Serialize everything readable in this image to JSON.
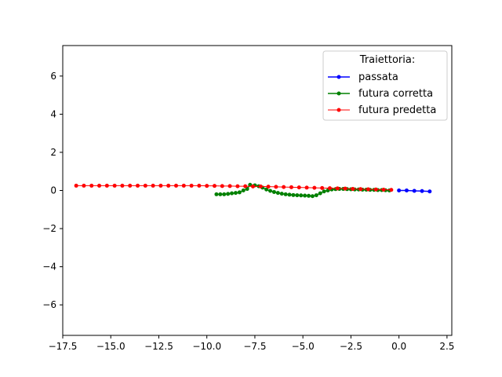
{
  "chart_data": {
    "type": "line",
    "xlim": [
      -17.5,
      2.75
    ],
    "ylim": [
      -7.6,
      7.6
    ],
    "xticks": [
      -17.5,
      -15.0,
      -12.5,
      -10.0,
      -7.5,
      -5.0,
      -2.5,
      0.0,
      2.5
    ],
    "xtick_labels": [
      "−17.5",
      "−15.0",
      "−12.5",
      "−10.0",
      "−7.5",
      "−5.0",
      "−2.5",
      "0.0",
      "2.5"
    ],
    "yticks": [
      -6,
      -4,
      -2,
      0,
      2,
      4,
      6
    ],
    "ytick_labels": [
      "−6",
      "−4",
      "−2",
      "0",
      "2",
      "4",
      "6"
    ],
    "grid": false,
    "legend": {
      "title": "Traiettoria:",
      "position": "top-right"
    },
    "series": [
      {
        "name": "passata",
        "color": "#0000ff",
        "x": [
          0.0,
          0.4,
          0.8,
          1.2,
          1.6
        ],
        "y": [
          0.0,
          0.0,
          -0.02,
          -0.03,
          -0.05
        ]
      },
      {
        "name": "futura corretta",
        "color": "#008000",
        "x": [
          -9.5,
          -9.3,
          -9.1,
          -8.9,
          -8.7,
          -8.5,
          -8.3,
          -8.1,
          -7.9,
          -7.75,
          -7.5,
          -7.3,
          -7.1,
          -6.9,
          -6.7,
          -6.5,
          -6.3,
          -6.1,
          -5.9,
          -5.7,
          -5.5,
          -5.3,
          -5.1,
          -4.9,
          -4.7,
          -4.5,
          -4.3,
          -4.1,
          -3.9,
          -3.7,
          -3.5,
          -3.3,
          -3.1,
          -2.9,
          -2.7,
          -2.5,
          -2.3,
          -2.1,
          -1.9,
          -1.7,
          -1.5,
          -1.3,
          -1.1,
          -0.9,
          -0.7,
          -0.5
        ],
        "y": [
          -0.2,
          -0.2,
          -0.2,
          -0.18,
          -0.15,
          -0.13,
          -0.1,
          0.0,
          0.08,
          0.3,
          0.27,
          0.22,
          0.15,
          0.05,
          -0.02,
          -0.08,
          -0.13,
          -0.17,
          -0.2,
          -0.22,
          -0.24,
          -0.25,
          -0.26,
          -0.27,
          -0.28,
          -0.3,
          -0.25,
          -0.15,
          -0.05,
          0.0,
          0.05,
          0.07,
          0.08,
          0.08,
          0.07,
          0.06,
          0.05,
          0.05,
          0.04,
          0.04,
          0.03,
          0.03,
          0.02,
          0.02,
          0.01,
          0.0
        ]
      },
      {
        "name": "futura predetta",
        "color": "#ff0000",
        "x": [
          -16.8,
          -16.4,
          -16.0,
          -15.6,
          -15.2,
          -14.8,
          -14.4,
          -14.0,
          -13.6,
          -13.2,
          -12.8,
          -12.4,
          -12.0,
          -11.6,
          -11.2,
          -10.8,
          -10.4,
          -10.0,
          -9.6,
          -9.2,
          -8.8,
          -8.4,
          -8.0,
          -7.6,
          -7.2,
          -6.8,
          -6.4,
          -6.0,
          -5.6,
          -5.2,
          -4.8,
          -4.4,
          -4.0,
          -3.6,
          -3.2,
          -2.8,
          -2.4,
          -2.0,
          -1.6,
          -1.2,
          -0.8,
          -0.4
        ],
        "y": [
          0.25,
          0.25,
          0.25,
          0.25,
          0.25,
          0.25,
          0.25,
          0.25,
          0.25,
          0.25,
          0.25,
          0.25,
          0.25,
          0.25,
          0.25,
          0.25,
          0.25,
          0.24,
          0.24,
          0.23,
          0.23,
          0.22,
          0.22,
          0.21,
          0.21,
          0.2,
          0.19,
          0.18,
          0.17,
          0.16,
          0.15,
          0.14,
          0.13,
          0.12,
          0.11,
          0.1,
          0.08,
          0.07,
          0.06,
          0.05,
          0.04,
          0.03
        ]
      }
    ]
  }
}
